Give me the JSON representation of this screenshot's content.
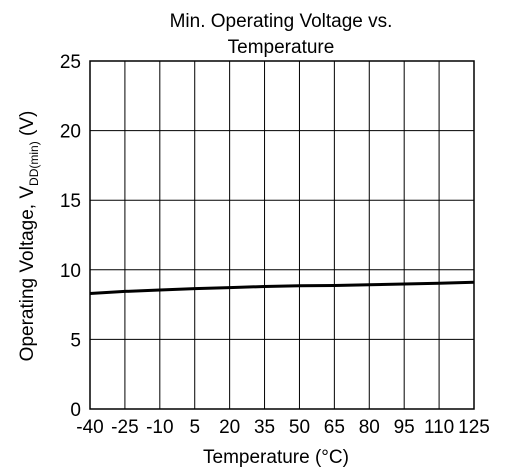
{
  "chart_data": {
    "type": "line",
    "title": [
      "Min. Operating Voltage vs.",
      "Temperature"
    ],
    "xlabel": "Temperature (°C)",
    "ylabel": {
      "prefix": "Operating Voltage, V",
      "subscript": "DD(min)",
      "suffix": " (V)"
    },
    "xlim": [
      -40,
      125
    ],
    "ylim": [
      0,
      25
    ],
    "xticks": [
      -40,
      -25,
      -10,
      5,
      20,
      35,
      50,
      65,
      80,
      95,
      110,
      125
    ],
    "xtick_labels": [
      "-40",
      "-25",
      "-10",
      "5",
      "20",
      "35",
      "50",
      "65",
      "80",
      "95",
      "110",
      "125"
    ],
    "yticks": [
      0,
      5,
      10,
      15,
      20,
      25
    ],
    "ytick_labels": [
      "0",
      "5",
      "10",
      "15",
      "20",
      "25"
    ],
    "grid": true,
    "series": [
      {
        "color": "#000000",
        "x": [
          -40,
          -25,
          -10,
          5,
          20,
          35,
          50,
          65,
          80,
          95,
          110,
          125
        ],
        "y": [
          8.3,
          8.45,
          8.55,
          8.65,
          8.72,
          8.8,
          8.85,
          8.87,
          8.92,
          8.98,
          9.03,
          9.1
        ]
      }
    ]
  }
}
